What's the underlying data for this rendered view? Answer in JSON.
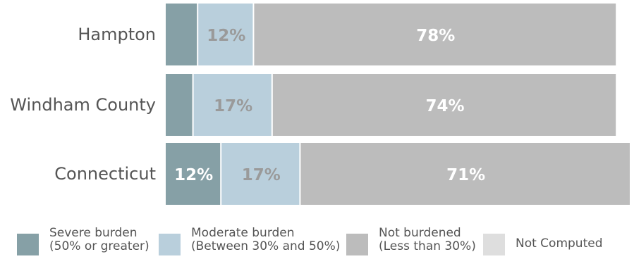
{
  "chart_data": {
    "type": "bar",
    "orientation": "horizontal",
    "stacked": true,
    "categories": [
      "Hampton",
      "Windham County",
      "Connecticut"
    ],
    "series": [
      {
        "name": "Severe burden (50% or greater)",
        "values": [
          7,
          6,
          12
        ],
        "labels": [
          "",
          "",
          "12%"
        ],
        "color": "#86a0a6"
      },
      {
        "name": "Moderate burden (Between 30% and 50%)",
        "values": [
          12,
          17,
          17
        ],
        "labels": [
          "12%",
          "17%",
          "17%"
        ],
        "color": "#b9cfdc"
      },
      {
        "name": "Not burdened (Less than 30%)",
        "values": [
          78,
          74,
          71
        ],
        "labels": [
          "78%",
          "74%",
          "71%"
        ],
        "color": "#bcbcbc"
      },
      {
        "name": "Not Computed",
        "values": [
          0,
          0,
          0
        ],
        "labels": [
          "",
          "",
          ""
        ],
        "color": "#dedede"
      }
    ],
    "xlim": [
      0,
      100
    ],
    "grid": false,
    "legend": "bottom",
    "label_colors": {
      "Severe burden (50% or greater)": "#ffffff",
      "Moderate burden (Between 30% and 50%)": "#9a9a9a",
      "Not burdened (Less than 30%)": "#ffffff"
    }
  },
  "legend": {
    "items": [
      {
        "line1": "Severe burden",
        "line2": "(50% or greater)",
        "color": "#86a0a6"
      },
      {
        "line1": "Moderate burden",
        "line2": "(Between 30% and 50%)",
        "color": "#b9cfdc"
      },
      {
        "line1": "Not burdened",
        "line2": "(Less than 30%)",
        "color": "#bcbcbc"
      },
      {
        "line1": "Not Computed",
        "line2": "",
        "color": "#dedede"
      }
    ]
  }
}
